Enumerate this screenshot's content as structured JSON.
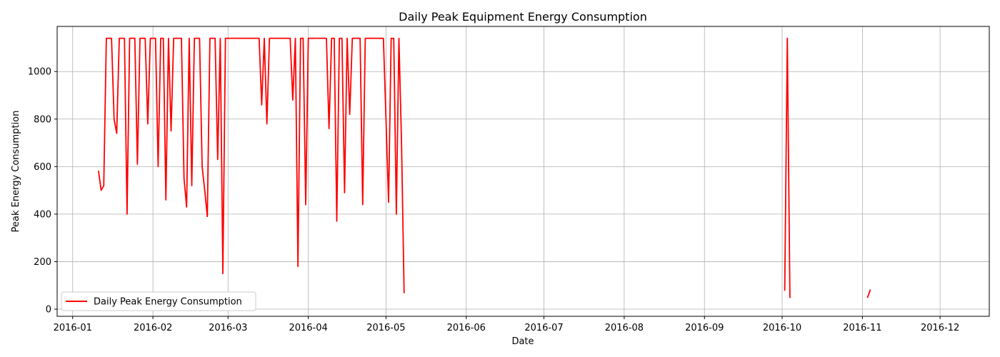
{
  "chart_data": {
    "type": "line",
    "title": "Daily Peak Equipment Energy Consumption",
    "xlabel": "Date",
    "ylabel": "Peak Energy Consumption",
    "xlim": [
      "2015-12-26",
      "2016-12-20"
    ],
    "ylim": [
      -30,
      1190
    ],
    "grid": true,
    "legend_position": "bottom-left",
    "x_ticks": [
      "2016-01",
      "2016-02",
      "2016-03",
      "2016-04",
      "2016-05",
      "2016-06",
      "2016-07",
      "2016-08",
      "2016-09",
      "2016-10",
      "2016-11",
      "2016-12"
    ],
    "y_ticks": [
      0,
      200,
      400,
      600,
      800,
      1000
    ],
    "colors": {
      "line": "#ff0000",
      "grid": "#b0b0b0",
      "axes": "#000000"
    },
    "series": [
      {
        "name": "Daily Peak Energy Consumption",
        "segments": [
          [
            [
              "2016-01-11",
              580
            ],
            [
              "2016-01-12",
              500
            ],
            [
              "2016-01-13",
              520
            ],
            [
              "2016-01-14",
              1140
            ],
            [
              "2016-01-15",
              1140
            ],
            [
              "2016-01-16",
              1140
            ],
            [
              "2016-01-17",
              800
            ],
            [
              "2016-01-18",
              740
            ],
            [
              "2016-01-19",
              1140
            ],
            [
              "2016-01-20",
              1140
            ],
            [
              "2016-01-21",
              1140
            ],
            [
              "2016-01-22",
              400
            ],
            [
              "2016-01-23",
              1140
            ],
            [
              "2016-01-24",
              1140
            ],
            [
              "2016-01-25",
              1140
            ],
            [
              "2016-01-26",
              610
            ],
            [
              "2016-01-27",
              1140
            ],
            [
              "2016-01-28",
              1140
            ],
            [
              "2016-01-29",
              1140
            ],
            [
              "2016-01-30",
              780
            ],
            [
              "2016-01-31",
              1140
            ],
            [
              "2016-02-01",
              1140
            ],
            [
              "2016-02-02",
              1140
            ],
            [
              "2016-02-03",
              600
            ],
            [
              "2016-02-04",
              1140
            ],
            [
              "2016-02-05",
              1140
            ],
            [
              "2016-02-06",
              460
            ],
            [
              "2016-02-07",
              1140
            ],
            [
              "2016-02-08",
              750
            ],
            [
              "2016-02-09",
              1140
            ],
            [
              "2016-02-10",
              1140
            ],
            [
              "2016-02-11",
              1140
            ],
            [
              "2016-02-12",
              1140
            ],
            [
              "2016-02-13",
              550
            ],
            [
              "2016-02-14",
              430
            ],
            [
              "2016-02-15",
              1140
            ],
            [
              "2016-02-16",
              520
            ],
            [
              "2016-02-17",
              1140
            ],
            [
              "2016-02-18",
              1140
            ],
            [
              "2016-02-19",
              1140
            ],
            [
              "2016-02-20",
              600
            ],
            [
              "2016-02-21",
              500
            ],
            [
              "2016-02-22",
              390
            ],
            [
              "2016-02-23",
              1140
            ],
            [
              "2016-02-24",
              1140
            ],
            [
              "2016-02-25",
              1140
            ],
            [
              "2016-02-26",
              630
            ],
            [
              "2016-02-27",
              1140
            ],
            [
              "2016-02-28",
              150
            ],
            [
              "2016-02-29",
              1140
            ],
            [
              "2016-03-01",
              1140
            ],
            [
              "2016-03-02",
              1140
            ],
            [
              "2016-03-03",
              1140
            ],
            [
              "2016-03-04",
              1140
            ],
            [
              "2016-03-05",
              1140
            ],
            [
              "2016-03-06",
              1140
            ],
            [
              "2016-03-07",
              1140
            ],
            [
              "2016-03-08",
              1140
            ],
            [
              "2016-03-09",
              1140
            ],
            [
              "2016-03-10",
              1140
            ],
            [
              "2016-03-11",
              1140
            ],
            [
              "2016-03-12",
              1140
            ],
            [
              "2016-03-13",
              1140
            ],
            [
              "2016-03-14",
              860
            ],
            [
              "2016-03-15",
              1140
            ],
            [
              "2016-03-16",
              780
            ],
            [
              "2016-03-17",
              1140
            ],
            [
              "2016-03-18",
              1140
            ],
            [
              "2016-03-19",
              1140
            ],
            [
              "2016-03-20",
              1140
            ],
            [
              "2016-03-21",
              1140
            ],
            [
              "2016-03-22",
              1140
            ],
            [
              "2016-03-23",
              1140
            ],
            [
              "2016-03-24",
              1140
            ],
            [
              "2016-03-25",
              1140
            ],
            [
              "2016-03-26",
              880
            ],
            [
              "2016-03-27",
              1140
            ],
            [
              "2016-03-28",
              180
            ],
            [
              "2016-03-29",
              1140
            ],
            [
              "2016-03-30",
              1140
            ],
            [
              "2016-03-31",
              440
            ],
            [
              "2016-04-01",
              1140
            ],
            [
              "2016-04-02",
              1140
            ],
            [
              "2016-04-03",
              1140
            ],
            [
              "2016-04-04",
              1140
            ],
            [
              "2016-04-05",
              1140
            ],
            [
              "2016-04-06",
              1140
            ],
            [
              "2016-04-07",
              1140
            ],
            [
              "2016-04-08",
              1140
            ],
            [
              "2016-04-09",
              760
            ],
            [
              "2016-04-10",
              1140
            ],
            [
              "2016-04-11",
              1140
            ],
            [
              "2016-04-12",
              370
            ],
            [
              "2016-04-13",
              1140
            ],
            [
              "2016-04-14",
              1140
            ],
            [
              "2016-04-15",
              490
            ],
            [
              "2016-04-16",
              1140
            ],
            [
              "2016-04-17",
              820
            ],
            [
              "2016-04-18",
              1140
            ],
            [
              "2016-04-19",
              1140
            ],
            [
              "2016-04-20",
              1140
            ],
            [
              "2016-04-21",
              1140
            ],
            [
              "2016-04-22",
              440
            ],
            [
              "2016-04-23",
              1140
            ],
            [
              "2016-04-24",
              1140
            ],
            [
              "2016-04-25",
              1140
            ],
            [
              "2016-04-26",
              1140
            ],
            [
              "2016-04-27",
              1140
            ],
            [
              "2016-04-28",
              1140
            ],
            [
              "2016-04-29",
              1140
            ],
            [
              "2016-04-30",
              1140
            ],
            [
              "2016-05-01",
              800
            ],
            [
              "2016-05-02",
              450
            ],
            [
              "2016-05-03",
              1140
            ],
            [
              "2016-05-04",
              1140
            ],
            [
              "2016-05-05",
              400
            ],
            [
              "2016-05-06",
              1140
            ],
            [
              "2016-05-07",
              700
            ],
            [
              "2016-05-08",
              70
            ]
          ],
          [
            [
              "2016-10-02",
              80
            ],
            [
              "2016-10-03",
              1140
            ],
            [
              "2016-10-04",
              50
            ]
          ],
          [
            [
              "2016-11-03",
              50
            ],
            [
              "2016-11-04",
              80
            ]
          ]
        ]
      }
    ]
  }
}
